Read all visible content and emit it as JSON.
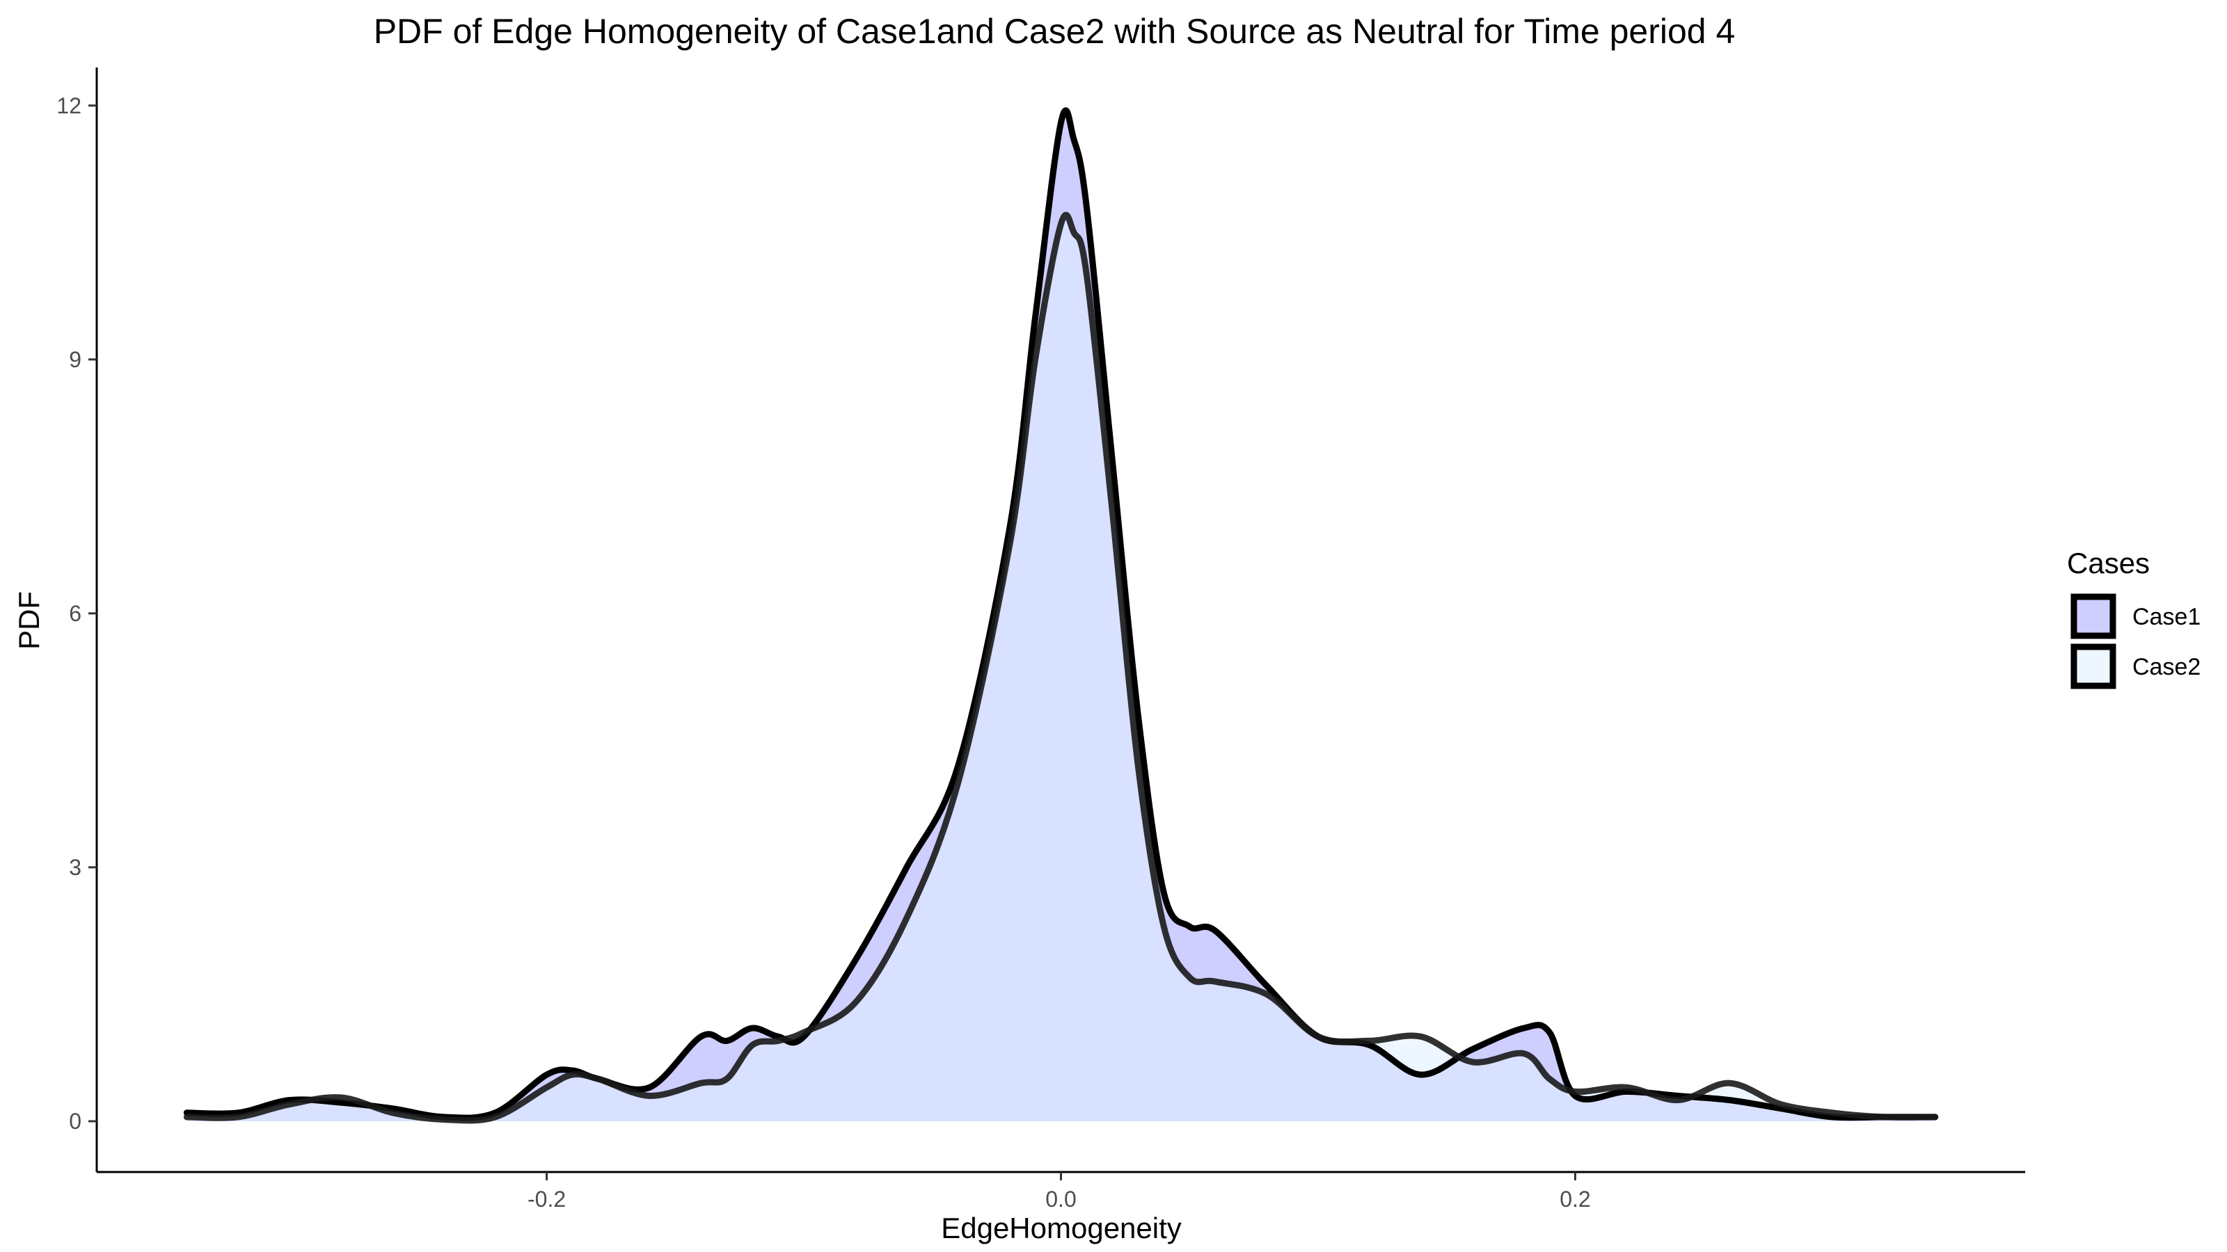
{
  "chart_data": {
    "type": "area",
    "title": "PDF of Edge Homogeneity of Case1and Case2 with Source as Neutral for Time period 4",
    "xlabel": "EdgeHomogeneity",
    "ylabel": "PDF",
    "xlim": [
      -0.375,
      0.375
    ],
    "ylim": [
      -0.6,
      12.45
    ],
    "x_ticks": [
      -0.2,
      0.0,
      0.2
    ],
    "x_tick_labels": [
      "-0.2",
      "0.0",
      "0.2"
    ],
    "y_ticks": [
      0,
      3,
      6,
      9,
      12
    ],
    "y_tick_labels": [
      "0",
      "3",
      "6",
      "9",
      "12"
    ],
    "grid": false,
    "legend": {
      "title": "Cases",
      "placement": "right"
    },
    "series": [
      {
        "name": "Case1",
        "fill": "#b3b3ff",
        "stroke": "#000000",
        "x": [
          -0.34,
          -0.32,
          -0.3,
          -0.28,
          -0.26,
          -0.24,
          -0.22,
          -0.2,
          -0.19,
          -0.18,
          -0.16,
          -0.14,
          -0.13,
          -0.12,
          -0.11,
          -0.1,
          -0.08,
          -0.06,
          -0.04,
          -0.02,
          -0.01,
          0.0,
          0.005,
          0.01,
          0.02,
          0.03,
          0.04,
          0.05,
          0.06,
          0.08,
          0.1,
          0.12,
          0.14,
          0.16,
          0.18,
          0.19,
          0.2,
          0.22,
          0.24,
          0.26,
          0.28,
          0.3,
          0.32,
          0.34
        ],
        "y": [
          0.1,
          0.1,
          0.25,
          0.22,
          0.15,
          0.05,
          0.1,
          0.55,
          0.6,
          0.5,
          0.4,
          1.0,
          0.95,
          1.1,
          1.0,
          1.0,
          1.9,
          3.0,
          4.2,
          7.0,
          9.5,
          11.8,
          11.6,
          10.8,
          7.8,
          4.8,
          2.7,
          2.3,
          2.25,
          1.6,
          1.0,
          0.9,
          0.55,
          0.85,
          1.1,
          1.05,
          0.3,
          0.35,
          0.3,
          0.25,
          0.15,
          0.05,
          0.05,
          0.05
        ]
      },
      {
        "name": "Case2",
        "fill": "#e0f0ff",
        "stroke": "#1a1a1a",
        "x": [
          -0.34,
          -0.32,
          -0.3,
          -0.28,
          -0.26,
          -0.24,
          -0.22,
          -0.2,
          -0.19,
          -0.18,
          -0.16,
          -0.14,
          -0.13,
          -0.12,
          -0.11,
          -0.1,
          -0.08,
          -0.06,
          -0.04,
          -0.02,
          -0.01,
          0.0,
          0.005,
          0.01,
          0.02,
          0.03,
          0.04,
          0.05,
          0.06,
          0.08,
          0.1,
          0.12,
          0.14,
          0.16,
          0.18,
          0.19,
          0.2,
          0.22,
          0.24,
          0.26,
          0.28,
          0.3,
          0.32,
          0.34
        ],
        "y": [
          0.05,
          0.05,
          0.2,
          0.28,
          0.1,
          0.02,
          0.05,
          0.4,
          0.55,
          0.5,
          0.3,
          0.45,
          0.5,
          0.9,
          0.95,
          1.05,
          1.4,
          2.4,
          4.0,
          6.8,
          9.0,
          10.6,
          10.5,
          10.0,
          7.2,
          4.2,
          2.3,
          1.7,
          1.65,
          1.5,
          1.0,
          0.95,
          1.0,
          0.7,
          0.8,
          0.5,
          0.35,
          0.4,
          0.25,
          0.45,
          0.2,
          0.1,
          0.05,
          0.05
        ]
      }
    ]
  }
}
